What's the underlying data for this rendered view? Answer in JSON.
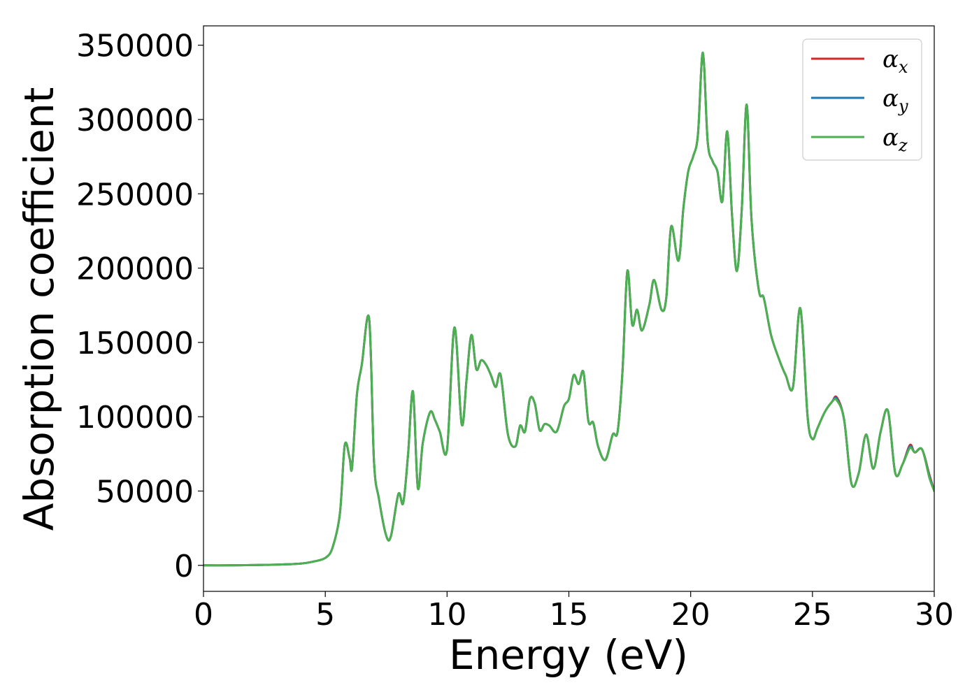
{
  "chart_data": {
    "type": "line",
    "xlabel": "Energy (eV)",
    "ylabel": "Absorption coefficient",
    "xlim": [
      0,
      30
    ],
    "ylim": [
      -17500,
      363000
    ],
    "xticks": [
      0,
      5,
      10,
      15,
      20,
      25,
      30
    ],
    "yticks": [
      0,
      50000,
      100000,
      150000,
      200000,
      250000,
      300000,
      350000
    ],
    "grid": false,
    "legend_position": "top-right",
    "x": [
      0,
      1,
      2,
      3,
      4,
      4.5,
      5,
      5.3,
      5.6,
      5.8,
      6.0,
      6.1,
      6.3,
      6.5,
      6.8,
      7.0,
      7.2,
      7.5,
      7.7,
      8.0,
      8.2,
      8.4,
      8.6,
      8.8,
      9.0,
      9.3,
      9.5,
      9.7,
      10.0,
      10.3,
      10.6,
      10.8,
      11.0,
      11.2,
      11.4,
      11.6,
      11.8,
      12.0,
      12.2,
      12.5,
      12.8,
      13.0,
      13.2,
      13.4,
      13.6,
      13.8,
      14.0,
      14.2,
      14.5,
      14.8,
      15.0,
      15.2,
      15.4,
      15.6,
      15.8,
      16.0,
      16.2,
      16.5,
      16.8,
      17.0,
      17.2,
      17.4,
      17.6,
      17.8,
      18.0,
      18.3,
      18.5,
      18.8,
      19.0,
      19.2,
      19.5,
      19.7,
      19.9,
      20.1,
      20.3,
      20.5,
      20.7,
      20.9,
      21.1,
      21.3,
      21.5,
      21.7,
      21.9,
      22.1,
      22.3,
      22.5,
      22.8,
      23.0,
      23.3,
      23.6,
      23.9,
      24.2,
      24.5,
      24.8,
      25.0,
      25.2,
      25.5,
      25.8,
      26.0,
      26.3,
      26.6,
      26.9,
      27.2,
      27.5,
      27.8,
      28.1,
      28.4,
      28.7,
      29.0,
      29.2,
      29.5,
      29.8,
      30.0
    ],
    "series": [
      {
        "name": "αx",
        "color": "#d62728",
        "values": [
          0,
          0,
          200,
          500,
          1200,
          2500,
          5000,
          12000,
          35000,
          81000,
          72000,
          66000,
          115000,
          135000,
          166000,
          70000,
          45000,
          20000,
          20000,
          48000,
          42000,
          75000,
          117000,
          52000,
          82000,
          103000,
          98000,
          90000,
          78000,
          160000,
          95000,
          125000,
          155000,
          132000,
          138000,
          135000,
          128000,
          120000,
          128000,
          88000,
          80000,
          94000,
          90000,
          112000,
          109000,
          91000,
          95000,
          94000,
          90000,
          107000,
          112000,
          128000,
          122000,
          130000,
          97000,
          96000,
          80000,
          71000,
          88000,
          90000,
          130000,
          198000,
          162000,
          172000,
          158000,
          175000,
          192000,
          172000,
          180000,
          228000,
          205000,
          240000,
          265000,
          275000,
          290000,
          345000,
          285000,
          272000,
          265000,
          245000,
          292000,
          235000,
          198000,
          240000,
          310000,
          232000,
          185000,
          180000,
          155000,
          140000,
          128000,
          120000,
          173000,
          100000,
          85000,
          92000,
          103000,
          110000,
          113000,
          98000,
          55000,
          62000,
          88000,
          65000,
          90000,
          104000,
          62000,
          68000,
          81000,
          76000,
          78000,
          61000,
          50000
        ]
      },
      {
        "name": "αy",
        "color": "#1f77b4",
        "values": [
          0,
          0,
          200,
          500,
          1200,
          2500,
          5000,
          12000,
          35000,
          81000,
          72000,
          66000,
          115000,
          135000,
          166000,
          70000,
          45000,
          20000,
          20000,
          48000,
          42000,
          75000,
          117000,
          52000,
          82000,
          103000,
          98000,
          90000,
          78000,
          160000,
          95000,
          125000,
          155000,
          132000,
          138000,
          135000,
          128000,
          120000,
          128000,
          88000,
          80000,
          94000,
          90000,
          112000,
          109000,
          91000,
          95000,
          94000,
          90000,
          107000,
          112000,
          128000,
          122000,
          130000,
          97000,
          96000,
          80000,
          71000,
          88000,
          90000,
          130000,
          198000,
          162000,
          172000,
          158000,
          175000,
          192000,
          172000,
          180000,
          228000,
          205000,
          240000,
          265000,
          275000,
          290000,
          345000,
          285000,
          272000,
          265000,
          245000,
          292000,
          235000,
          198000,
          240000,
          310000,
          232000,
          185000,
          180000,
          155000,
          140000,
          128000,
          120000,
          173000,
          100000,
          85000,
          92000,
          103000,
          110000,
          112000,
          98000,
          55000,
          62000,
          88000,
          65000,
          90000,
          104000,
          62000,
          68000,
          80000,
          76000,
          78000,
          60000,
          50000
        ]
      },
      {
        "name": "αz",
        "color": "#4caf50",
        "values": [
          0,
          0,
          200,
          500,
          1200,
          2500,
          5000,
          12000,
          35000,
          81000,
          72000,
          66000,
          115000,
          135000,
          166000,
          70000,
          45000,
          20000,
          20000,
          48000,
          42000,
          75000,
          117000,
          52000,
          82000,
          103000,
          98000,
          90000,
          78000,
          160000,
          95000,
          125000,
          155000,
          132000,
          138000,
          135000,
          128000,
          120000,
          128000,
          88000,
          80000,
          94000,
          90000,
          112000,
          109000,
          91000,
          95000,
          94000,
          90000,
          107000,
          112000,
          128000,
          122000,
          130000,
          97000,
          96000,
          80000,
          71000,
          88000,
          90000,
          130000,
          198000,
          162000,
          172000,
          158000,
          175000,
          192000,
          172000,
          180000,
          228000,
          205000,
          240000,
          265000,
          275000,
          290000,
          345000,
          285000,
          272000,
          265000,
          245000,
          292000,
          235000,
          198000,
          240000,
          310000,
          232000,
          185000,
          180000,
          155000,
          140000,
          128000,
          120000,
          173000,
          100000,
          85000,
          92000,
          103000,
          110000,
          111000,
          98000,
          55000,
          62000,
          88000,
          65000,
          90000,
          104000,
          62000,
          68000,
          79000,
          76000,
          78000,
          59000,
          50000
        ]
      }
    ],
    "legend": [
      {
        "symbol": "α",
        "sub": "x",
        "color": "#d62728"
      },
      {
        "symbol": "α",
        "sub": "y",
        "color": "#1f77b4"
      },
      {
        "symbol": "α",
        "sub": "z",
        "color": "#4caf50"
      }
    ]
  }
}
